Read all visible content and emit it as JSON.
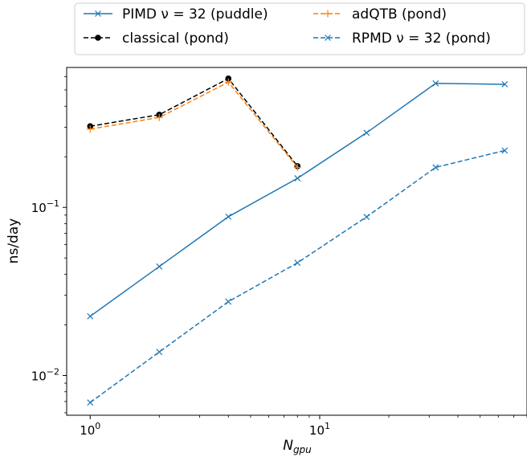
{
  "chart_data": {
    "type": "line",
    "xscale": "log",
    "yscale": "log",
    "xlim": [
      0.79,
      80
    ],
    "ylim": [
      0.0058,
      0.68
    ],
    "xlabel": {
      "main": "N",
      "sub": "gpu"
    },
    "ylabel": "ns/day",
    "x_ticks": [
      {
        "value": 1,
        "base": "10",
        "exp": "0"
      },
      {
        "value": 10,
        "base": "10",
        "exp": "1"
      }
    ],
    "y_ticks": [
      {
        "value": 0.01,
        "base": "10",
        "exp": "−2"
      },
      {
        "value": 0.1,
        "base": "10",
        "exp": "−1"
      }
    ],
    "grid": false,
    "legend_position": "top, outside plot",
    "series": [
      {
        "name": "PIMD ν = 32 (puddle)",
        "color": "#1f77b4",
        "linestyle": "solid",
        "marker": "x",
        "x": [
          1,
          2,
          4,
          8,
          16,
          32,
          64
        ],
        "y": [
          0.0225,
          0.0445,
          0.088,
          0.149,
          0.278,
          0.547,
          0.54
        ]
      },
      {
        "name": "classical (pond)",
        "color": "#000000",
        "linestyle": "dashed",
        "marker": "dot",
        "x": [
          1,
          2,
          4,
          8
        ],
        "y": [
          0.304,
          0.356,
          0.584,
          0.176
        ]
      },
      {
        "name": "adQTB (pond)",
        "color": "#ff7f0e",
        "linestyle": "dashed",
        "marker": "plus",
        "x": [
          1,
          2,
          4,
          8
        ],
        "y": [
          0.292,
          0.343,
          0.556,
          0.173
        ]
      },
      {
        "name": "RPMD ν = 32 (pond)",
        "color": "#1f77b4",
        "linestyle": "dashed",
        "marker": "x",
        "x": [
          1,
          2,
          4,
          8,
          16,
          32,
          64
        ],
        "y": [
          0.0069,
          0.0138,
          0.0275,
          0.0468,
          0.0878,
          0.173,
          0.218
        ]
      }
    ]
  },
  "legend": [
    {
      "label": "PIMD ν = 32 (puddle)",
      "series": 0
    },
    {
      "label": "classical (pond)",
      "series": 1
    },
    {
      "label": "adQTB (pond)",
      "series": 2
    },
    {
      "label": "RPMD ν = 32 (pond)",
      "series": 3
    }
  ]
}
